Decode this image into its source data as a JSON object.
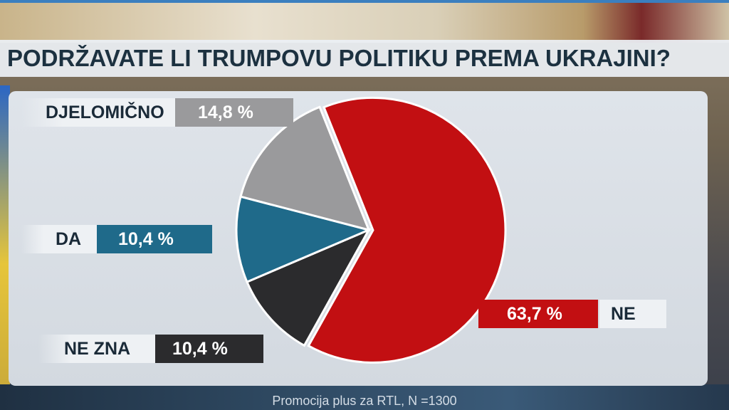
{
  "title": "PODRŽAVATE LI TRUMPOVU POLITIKU PREMA UKRAJINI?",
  "footer": "Promocija plus za RTL,  N =1300",
  "labels": {
    "djelomicno": "DJELOMIČNO",
    "djelomicno_value": "14,8 %",
    "da": "DA",
    "da_value": "10,4 %",
    "ne_zna": "NE ZNA",
    "ne_zna_value": "10,4 %",
    "ne": "NE",
    "ne_value": "63,7 %"
  },
  "colors": {
    "ne": "#c20f12",
    "ne_zna": "#2b2b2d",
    "da": "#1f6a8a",
    "djelomicno": "#9a9a9c"
  },
  "chart_data": {
    "type": "pie",
    "title": "PODRŽAVATE LI TRUMPOVU POLITIKU PREMA UKRAJINI?",
    "slices": [
      {
        "label": "NE",
        "value": 63.7
      },
      {
        "label": "NE ZNA",
        "value": 10.4
      },
      {
        "label": "DA",
        "value": 10.4
      },
      {
        "label": "DJELOMIČNO",
        "value": 14.8
      }
    ],
    "note": "Promocija plus za RTL,  N =1300"
  }
}
